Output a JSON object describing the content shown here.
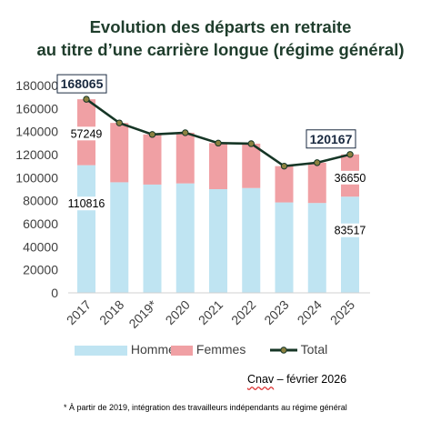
{
  "title_line1": "Evolution des départs en retraite",
  "title_line2": "au titre d’une carrière longue (régime général)",
  "chart_data": {
    "type": "bar",
    "stacked": true,
    "categories": [
      "2017",
      "2018",
      "2019*",
      "2020",
      "2021",
      "2022",
      "2023",
      "2024",
      "2025"
    ],
    "series": [
      {
        "name": "Hommes",
        "type": "bar",
        "color": "#bfe4f2",
        "values": [
          110816,
          96000,
          94000,
          95000,
          90000,
          91000,
          78500,
          78000,
          83517
        ]
      },
      {
        "name": "Femmes",
        "type": "bar",
        "color": "#f0a0a4",
        "values": [
          57249,
          51500,
          43500,
          44000,
          40000,
          38500,
          31500,
          35000,
          36650
        ]
      },
      {
        "name": "Total",
        "type": "line",
        "color": "#163626",
        "values": [
          168065,
          147500,
          137500,
          139000,
          130000,
          129500,
          110000,
          113000,
          120167
        ]
      }
    ],
    "ylim": [
      0,
      180000
    ],
    "yticks": [
      0,
      20000,
      40000,
      60000,
      80000,
      100000,
      120000,
      140000,
      160000,
      180000
    ],
    "grid": false,
    "legend": "bottom",
    "data_labels": [
      {
        "category": "2017",
        "series": "Hommes",
        "text": "110816"
      },
      {
        "category": "2017",
        "series": "Femmes",
        "text": "57249"
      },
      {
        "category": "2017",
        "series": "Total",
        "text": "168065"
      },
      {
        "category": "2025",
        "series": "Hommes",
        "text": "83517"
      },
      {
        "category": "2025",
        "series": "Femmes",
        "text": "36650"
      },
      {
        "category": "2025",
        "series": "Total",
        "text": "120167"
      }
    ]
  },
  "legend_items": [
    {
      "label": "Hommes",
      "color": "#bfe4f2"
    },
    {
      "label": "Femmes",
      "color": "#f0a0a4"
    },
    {
      "label": "Total",
      "color": "#163626"
    }
  ],
  "source_brand": "Cnav",
  "source_rest": " – février 2026",
  "footnote": "* À partir de 2019, intégration des travailleurs indépendants au régime général"
}
